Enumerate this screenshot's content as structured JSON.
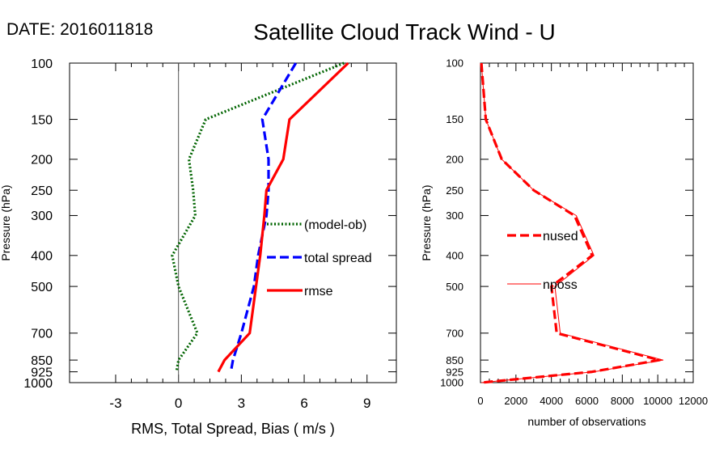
{
  "header": {
    "date_label": "DATE: 2016011818",
    "title": "Satellite Cloud Track Wind - U"
  },
  "chart_data": [
    {
      "type": "line",
      "name": "left-panel",
      "xlabel": "RMS, Total Spread, Bias ( m/s )",
      "ylabel": "Pressure (hPa)",
      "xlim": [
        -5.2,
        10.4
      ],
      "xticks": [
        -3,
        0,
        3,
        6,
        9
      ],
      "xtick_labels": [
        "-3",
        "0",
        "3",
        "6",
        "9"
      ],
      "ylim": [
        1000,
        100
      ],
      "yscale": "log",
      "yticks": [
        100,
        150,
        200,
        250,
        300,
        400,
        500,
        700,
        850,
        925,
        1000
      ],
      "ytick_labels": [
        "100",
        "150",
        "200",
        "250",
        "300",
        "400",
        "500",
        "700",
        "850",
        "925",
        "1000"
      ],
      "zero_line": 0,
      "pressure_levels": [
        100,
        150,
        200,
        250,
        300,
        400,
        500,
        700,
        850,
        925
      ],
      "series": [
        {
          "name": "(model-ob)",
          "color": "#006400",
          "style": "dotted",
          "values": [
            7.9,
            1.3,
            0.5,
            0.7,
            0.8,
            -0.3,
            0.0,
            0.9,
            0.0,
            -0.1
          ]
        },
        {
          "name": "total spread",
          "color": "#0000ff",
          "style": "dashed",
          "values": [
            5.6,
            4.0,
            4.3,
            4.3,
            4.2,
            3.8,
            3.6,
            3.0,
            2.6,
            2.5
          ]
        },
        {
          "name": "rmse",
          "color": "#ff0000",
          "style": "solid",
          "values": [
            8.1,
            5.3,
            5.0,
            4.2,
            4.1,
            3.9,
            3.7,
            3.4,
            2.2,
            1.9
          ]
        }
      ]
    },
    {
      "type": "line",
      "name": "right-panel",
      "xlabel": "number of observations",
      "ylabel": "Pressure (hPa)",
      "xlim": [
        0,
        12000
      ],
      "xticks": [
        0,
        2000,
        4000,
        6000,
        8000,
        10000,
        12000
      ],
      "xtick_labels": [
        "0",
        "2000",
        "4000",
        "6000",
        "8000",
        "10000",
        "12000"
      ],
      "ylim": [
        1000,
        100
      ],
      "yscale": "log",
      "yticks": [
        100,
        150,
        200,
        250,
        300,
        400,
        500,
        700,
        850,
        925,
        1000
      ],
      "ytick_labels": [
        "100",
        "150",
        "200",
        "250",
        "300",
        "400",
        "500",
        "700",
        "850",
        "925",
        "1000"
      ],
      "pressure_levels": [
        100,
        150,
        200,
        250,
        300,
        400,
        500,
        700,
        850,
        925,
        1000
      ],
      "series": [
        {
          "name": "nused",
          "color": "#ff0000",
          "style": "dashed",
          "values": [
            50,
            300,
            1200,
            3000,
            5300,
            6300,
            4000,
            4300,
            10100,
            6300,
            50
          ]
        },
        {
          "name": "nposs",
          "color": "#ff0000",
          "style": "thin-solid",
          "values": [
            50,
            300,
            1200,
            3000,
            5400,
            6400,
            4200,
            4500,
            10300,
            6400,
            50
          ]
        }
      ]
    }
  ]
}
